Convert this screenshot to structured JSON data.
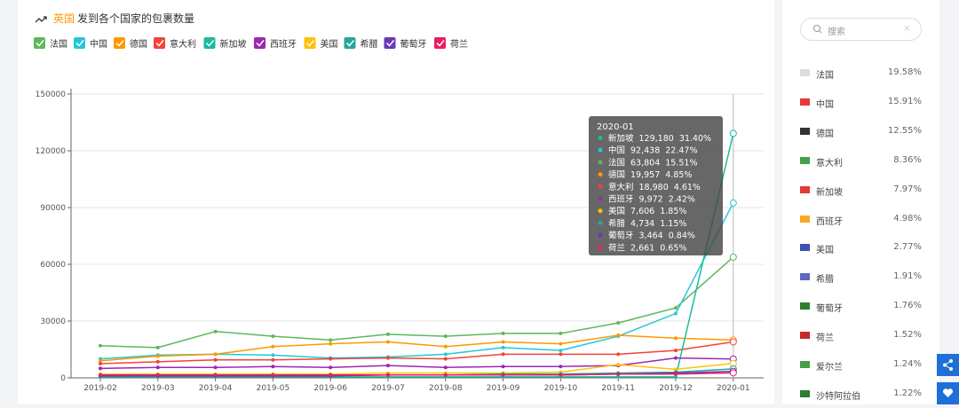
{
  "chart_data": {
    "type": "line",
    "title_country": "英国",
    "title": "发到各个国家的包裹数量",
    "categories": [
      "2019-02",
      "2019-03",
      "2019-04",
      "2019-05",
      "2019-06",
      "2019-07",
      "2019-08",
      "2019-09",
      "2019-10",
      "2019-11",
      "2019-12",
      "2020-01"
    ],
    "series": [
      {
        "name": "法国",
        "color": "#5cb85c",
        "values": [
          17000,
          16000,
          24500,
          22000,
          20000,
          23000,
          22000,
          23500,
          23500,
          29000,
          37000,
          63804
        ]
      },
      {
        "name": "中国",
        "color": "#26c6da",
        "values": [
          10000,
          12000,
          12500,
          12000,
          10500,
          11000,
          12500,
          16000,
          14500,
          22000,
          34000,
          92438
        ]
      },
      {
        "name": "德国",
        "color": "#ff9800",
        "values": [
          9000,
          11500,
          12500,
          16500,
          18000,
          19000,
          16500,
          19000,
          18000,
          22500,
          21000,
          19957
        ]
      },
      {
        "name": "意大利",
        "color": "#f44336",
        "values": [
          7500,
          8500,
          9500,
          9500,
          10000,
          10500,
          10000,
          12500,
          12500,
          12500,
          14500,
          18980
        ]
      },
      {
        "name": "新加坡",
        "color": "#1abc9c",
        "values": [
          500,
          500,
          500,
          500,
          500,
          500,
          500,
          500,
          500,
          500,
          500,
          129180
        ]
      },
      {
        "name": "西班牙",
        "color": "#9c27b0",
        "values": [
          5000,
          5500,
          5500,
          6000,
          5500,
          6500,
          5500,
          6000,
          6000,
          6500,
          10500,
          9972
        ]
      },
      {
        "name": "美国",
        "color": "#ffc107",
        "values": [
          2000,
          2000,
          2000,
          2000,
          2000,
          2500,
          2500,
          2500,
          3000,
          7000,
          4500,
          7606
        ]
      },
      {
        "name": "希腊",
        "color": "#26a69a",
        "values": [
          1500,
          1500,
          1500,
          1500,
          1500,
          1500,
          1500,
          2000,
          2000,
          2500,
          3000,
          4734
        ]
      },
      {
        "name": "葡萄牙",
        "color": "#673ab7",
        "values": [
          1000,
          1000,
          1000,
          1000,
          1000,
          1500,
          1500,
          1500,
          1500,
          2000,
          2500,
          3464
        ]
      },
      {
        "name": "荷兰",
        "color": "#e91e63",
        "values": [
          1500,
          1500,
          1500,
          1500,
          1500,
          1500,
          1500,
          1500,
          1500,
          2000,
          2000,
          2661
        ]
      }
    ],
    "ylim": [
      0,
      150000
    ],
    "yticks": [
      0,
      30000,
      60000,
      90000,
      120000,
      150000
    ],
    "grid": true,
    "tooltip": {
      "title": "2020-01",
      "rows": [
        {
          "name": "新加坡",
          "value": "129,180",
          "percent": "31.40%"
        },
        {
          "name": "中国",
          "value": "92,438",
          "percent": "22.47%"
        },
        {
          "name": "法国",
          "value": "63,804",
          "percent": "15.51%"
        },
        {
          "name": "德国",
          "value": "19,957",
          "percent": "4.85%"
        },
        {
          "name": "意大利",
          "value": "18,980",
          "percent": "4.61%"
        },
        {
          "name": "西班牙",
          "value": "9,972",
          "percent": "2.42%"
        },
        {
          "name": "美国",
          "value": "7,606",
          "percent": "1.85%"
        },
        {
          "name": "希腊",
          "value": "4,734",
          "percent": "1.15%"
        },
        {
          "name": "葡萄牙",
          "value": "3,464",
          "percent": "0.84%"
        },
        {
          "name": "荷兰",
          "value": "2,661",
          "percent": "0.65%"
        }
      ]
    }
  },
  "sidebar": {
    "search_placeholder": "搜索",
    "items": [
      {
        "name": "法国",
        "share": "19.58%"
      },
      {
        "name": "中国",
        "share": "15.91%"
      },
      {
        "name": "德国",
        "share": "12.55%"
      },
      {
        "name": "意大利",
        "share": "8.36%"
      },
      {
        "name": "新加坡",
        "share": "7.97%"
      },
      {
        "name": "西班牙",
        "share": "4.98%"
      },
      {
        "name": "美国",
        "share": "2.77%"
      },
      {
        "name": "希腊",
        "share": "1.91%"
      },
      {
        "name": "葡萄牙",
        "share": "1.76%"
      },
      {
        "name": "荷兰",
        "share": "1.52%"
      },
      {
        "name": "爱尔兰",
        "share": "1.24%"
      },
      {
        "name": "沙特阿拉伯",
        "share": "1.22%"
      }
    ]
  }
}
